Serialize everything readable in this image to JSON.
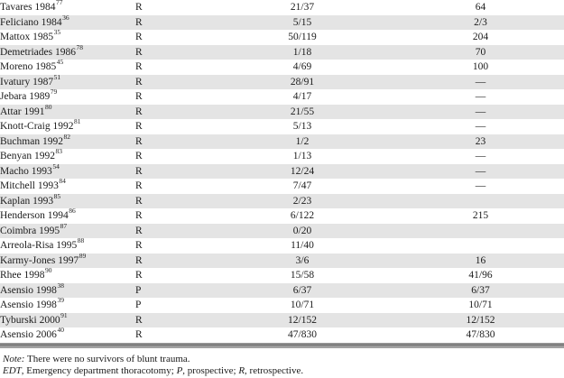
{
  "table": {
    "rows": [
      {
        "study": "Tavares 1984",
        "ref": "77",
        "design": "R",
        "survived": "21/37",
        "overall": "64"
      },
      {
        "study": "Feliciano 1984",
        "ref": "36",
        "design": "R",
        "survived": "5/15",
        "overall": "2/3"
      },
      {
        "study": "Mattox 1985",
        "ref": "35",
        "design": "R",
        "survived": "50/119",
        "overall": "204"
      },
      {
        "study": "Demetriades 1986",
        "ref": "78",
        "design": "R",
        "survived": "1/18",
        "overall": "70"
      },
      {
        "study": "Moreno 1985",
        "ref": "45",
        "design": "R",
        "survived": "4/69",
        "overall": "100"
      },
      {
        "study": "Ivatury 1987",
        "ref": "51",
        "design": "R",
        "survived": "28/91",
        "overall": "—"
      },
      {
        "study": "Jebara 1989",
        "ref": "79",
        "design": "R",
        "survived": "4/17",
        "overall": "—"
      },
      {
        "study": "Attar 1991",
        "ref": "80",
        "design": "R",
        "survived": "21/55",
        "overall": "—"
      },
      {
        "study": "Knott-Craig 1992",
        "ref": "81",
        "design": "R",
        "survived": "5/13",
        "overall": "—"
      },
      {
        "study": "Buchman 1992",
        "ref": "82",
        "design": "R",
        "survived": "1/2",
        "overall": "23"
      },
      {
        "study": "Benyan 1992",
        "ref": "83",
        "design": "R",
        "survived": "1/13",
        "overall": "—"
      },
      {
        "study": "Macho 1993",
        "ref": "54",
        "design": "R",
        "survived": "12/24",
        "overall": "—"
      },
      {
        "study": "Mitchell 1993",
        "ref": "84",
        "design": "R",
        "survived": "7/47",
        "overall": "—"
      },
      {
        "study": "Kaplan 1993",
        "ref": "85",
        "design": "R",
        "survived": "2/23",
        "overall": ""
      },
      {
        "study": "Henderson 1994",
        "ref": "86",
        "design": "R",
        "survived": "6/122",
        "overall": "215"
      },
      {
        "study": "Coimbra 1995",
        "ref": "87",
        "design": "R",
        "survived": "0/20",
        "overall": ""
      },
      {
        "study": "Arreola-Risa 1995",
        "ref": "88",
        "design": "R",
        "survived": "11/40",
        "overall": ""
      },
      {
        "study": "Karmy-Jones 1997",
        "ref": "89",
        "design": "R",
        "survived": "3/6",
        "overall": "16"
      },
      {
        "study": "Rhee 1998",
        "ref": "90",
        "design": "R",
        "survived": "15/58",
        "overall": "41/96"
      },
      {
        "study": "Asensio 1998",
        "ref": "38",
        "design": "P",
        "survived": "6/37",
        "overall": "6/37"
      },
      {
        "study": "Asensio 1998",
        "ref": "39",
        "design": "P",
        "survived": "10/71",
        "overall": "10/71"
      },
      {
        "study": "Tyburski 2000",
        "ref": "91",
        "design": "R",
        "survived": "12/152",
        "overall": "12/152"
      },
      {
        "study": "Asensio 2006",
        "ref": "40",
        "design": "R",
        "survived": "47/830",
        "overall": "47/830"
      }
    ]
  },
  "footnotes": {
    "note_label": "Note:",
    "note_text": " There were no survivors of blunt trauma.",
    "abbrev_segments": [
      {
        "text": "EDT",
        "italic": true
      },
      {
        "text": ", Emergency department thoracotomy; ",
        "italic": false
      },
      {
        "text": "P",
        "italic": true
      },
      {
        "text": ", prospective; ",
        "italic": false
      },
      {
        "text": "R",
        "italic": true
      },
      {
        "text": ", retrospective.",
        "italic": false
      }
    ]
  },
  "colors": {
    "row_stripe": "#e4e4e4",
    "text": "#1b1b1b",
    "bottom_rule": "#838383"
  }
}
